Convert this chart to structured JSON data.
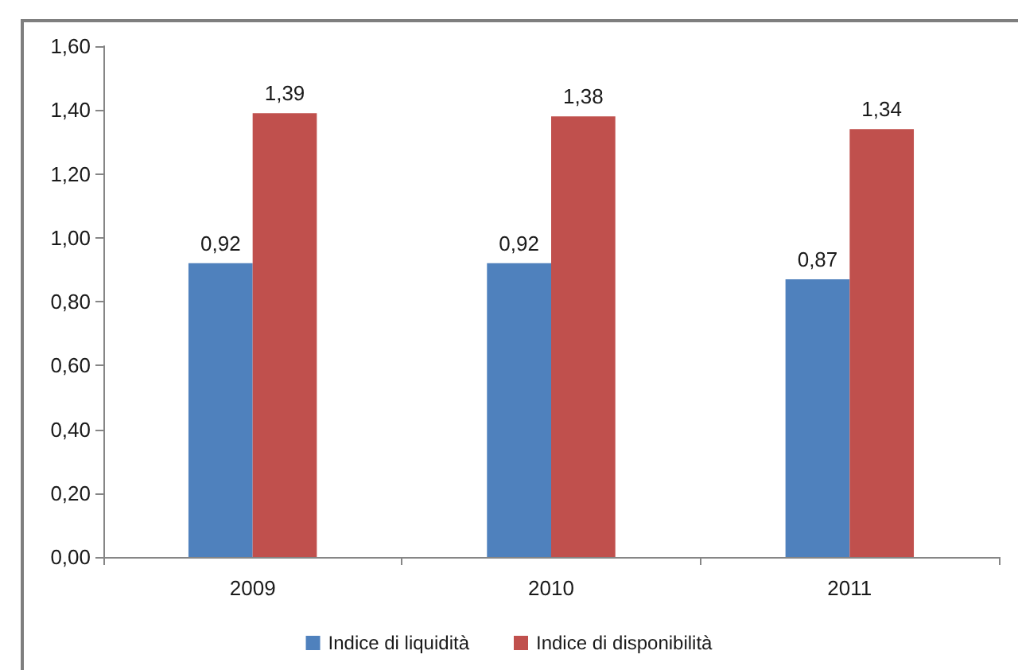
{
  "chart_data": {
    "type": "bar",
    "categories": [
      "2009",
      "2010",
      "2011"
    ],
    "series": [
      {
        "name": "Indice di liquidità",
        "color": "#4f81bd",
        "values": [
          0.92,
          0.92,
          0.87
        ],
        "value_labels": [
          "0,92",
          "0,92",
          "0,87"
        ]
      },
      {
        "name": "Indice di disponibilità",
        "color": "#c0504d",
        "values": [
          1.39,
          1.38,
          1.34
        ],
        "value_labels": [
          "1,39",
          "1,38",
          "1,34"
        ]
      }
    ],
    "ylim": [
      0,
      1.6
    ],
    "yticks": [
      {
        "value": 0,
        "label": "0,00"
      },
      {
        "value": 0.2,
        "label": "0,20"
      },
      {
        "value": 0.4,
        "label": "0,40"
      },
      {
        "value": 0.6,
        "label": "0,60"
      },
      {
        "value": 0.8,
        "label": "0,80"
      },
      {
        "value": 1,
        "label": "1,00"
      },
      {
        "value": 1.2,
        "label": "1,20"
      },
      {
        "value": 1.4,
        "label": "1,40"
      },
      {
        "value": 1.6,
        "label": "1,60"
      }
    ],
    "grid": false,
    "legend": "bottom"
  }
}
